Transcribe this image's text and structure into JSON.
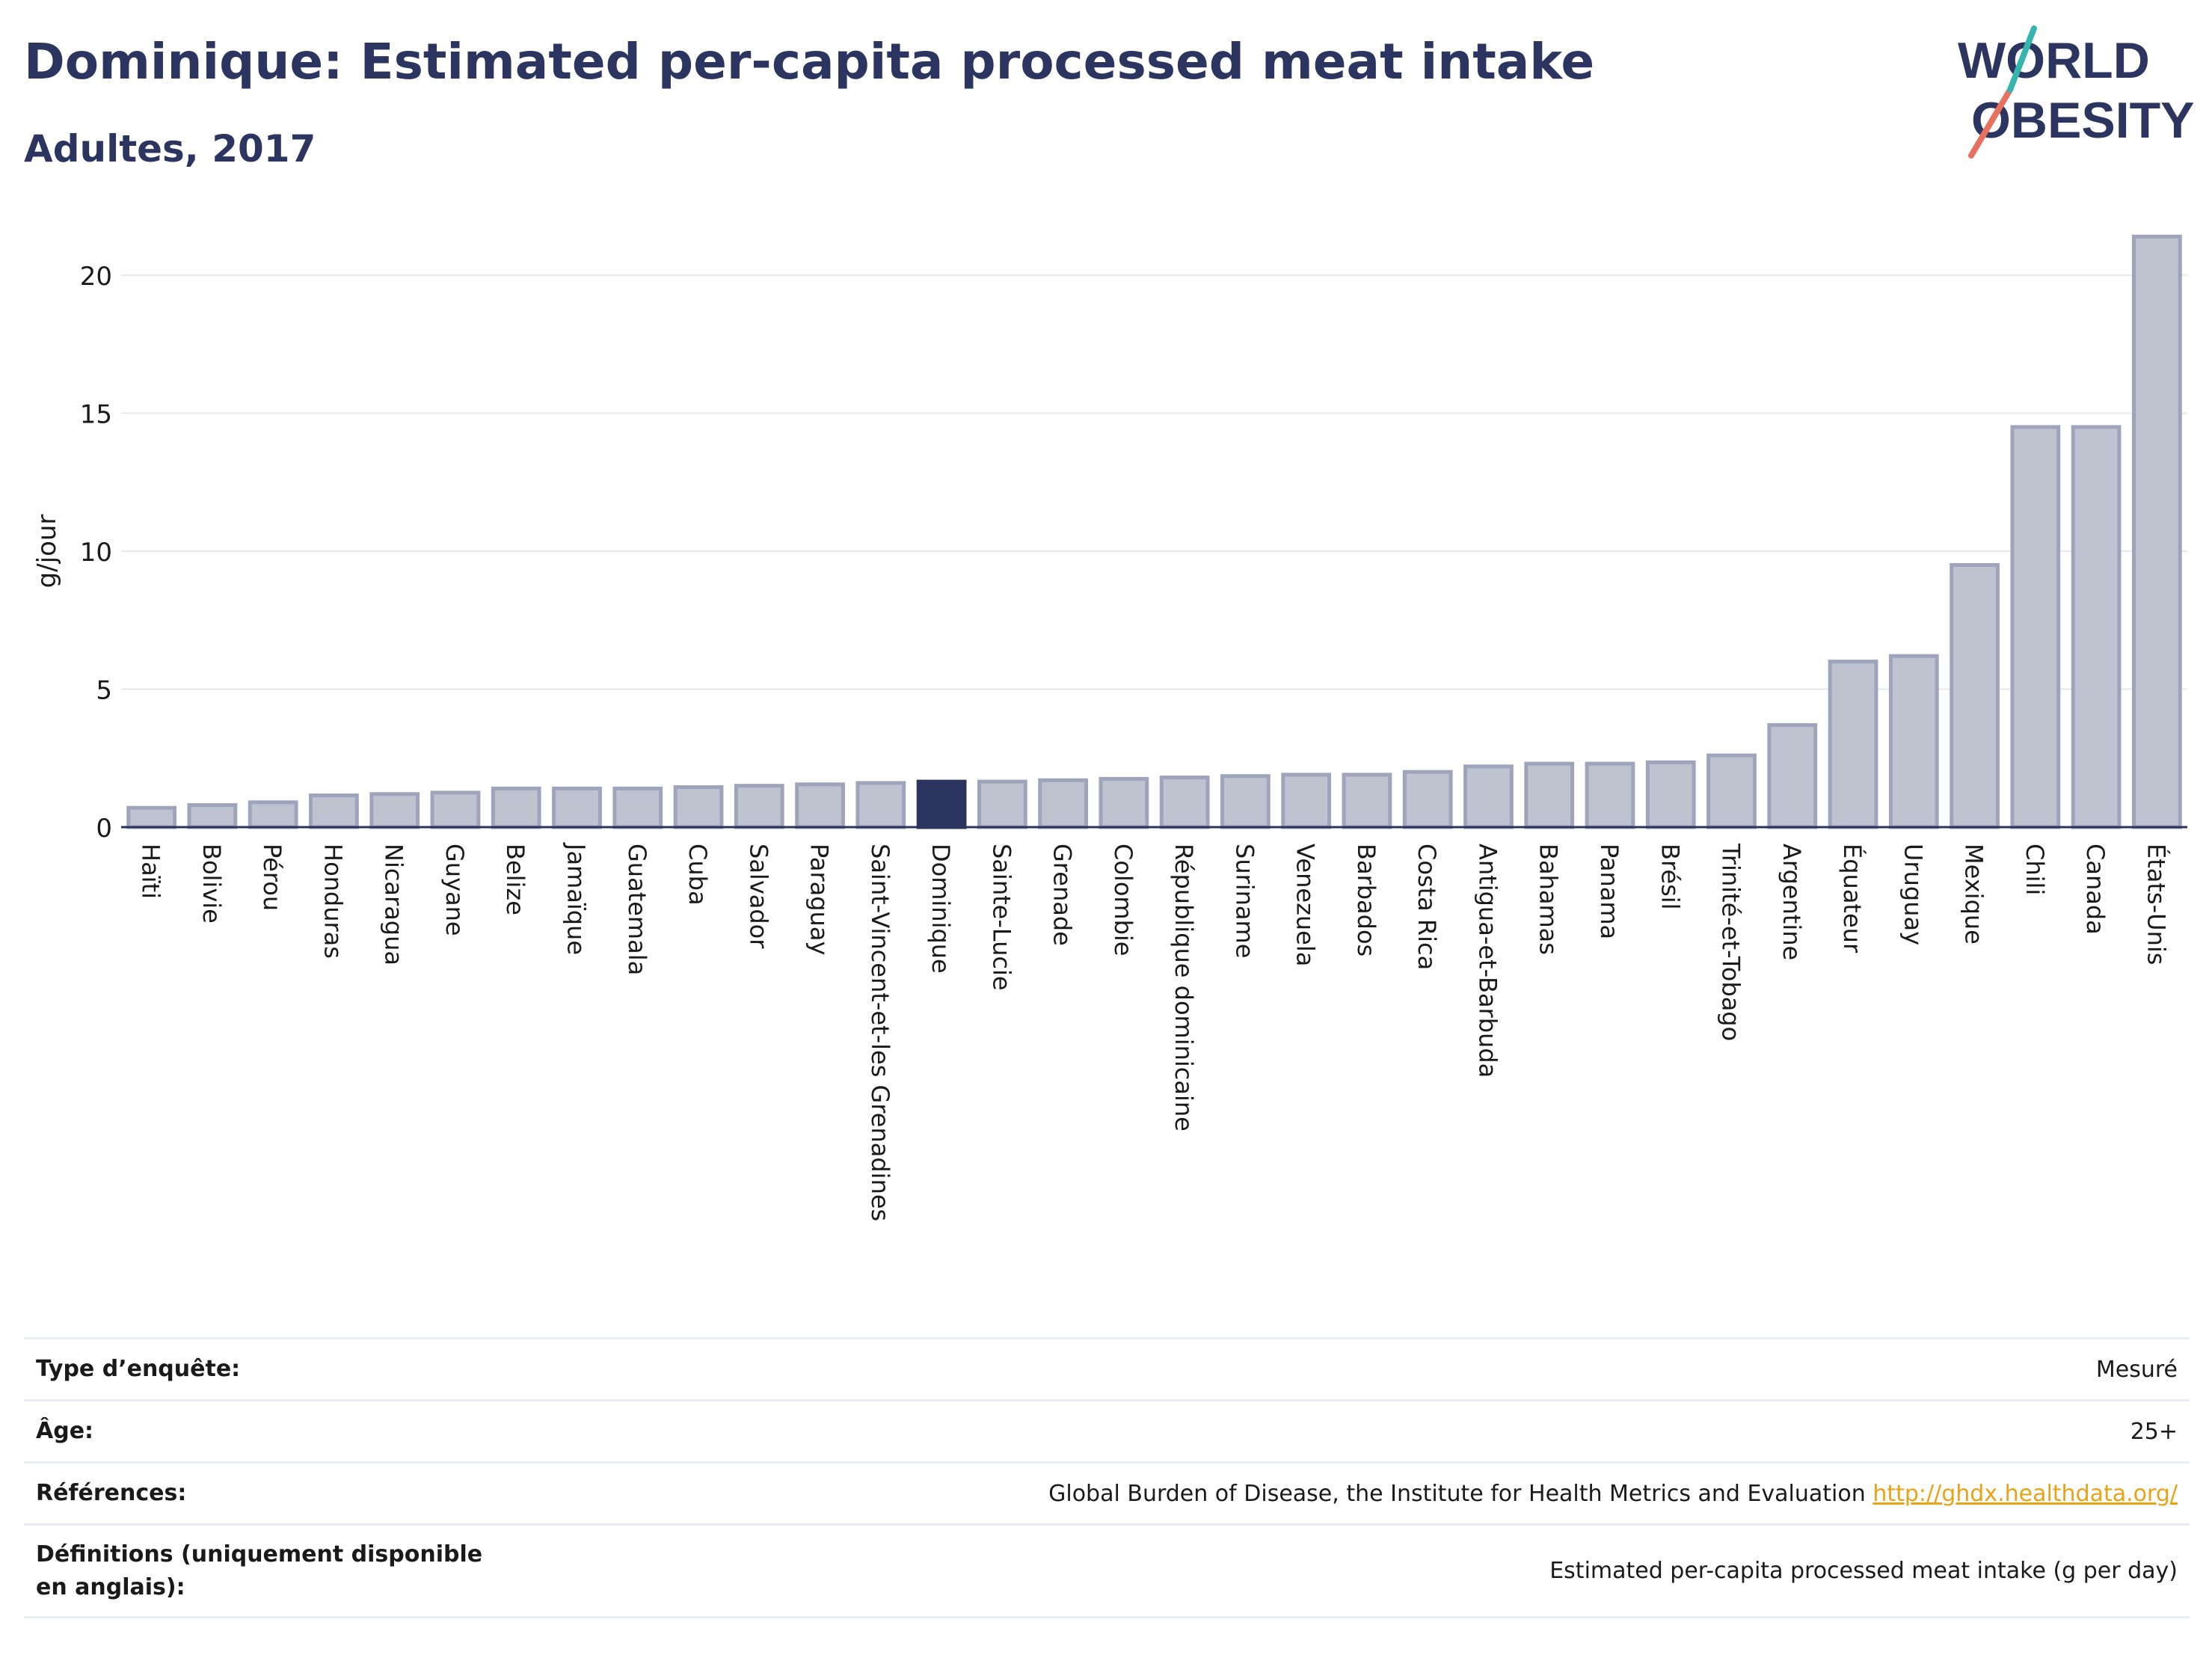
{
  "title": "Dominique: Estimated per-capita processed meat intake",
  "subtitle": "Adultes, 2017",
  "logo": {
    "line1": "WORLD",
    "line2": "OBESITY"
  },
  "colors": {
    "bar": "#bfc3d0",
    "bar_stroke": "#9ea4bb",
    "highlight": "#2b3560",
    "title": "#2b3560",
    "link": "#e8a317"
  },
  "chart_data": {
    "type": "bar",
    "ylabel": "g/jour",
    "xlabel": "",
    "ylim": [
      0,
      22
    ],
    "yticks": [
      0,
      5,
      10,
      15,
      20
    ],
    "grid": true,
    "highlight": "Dominique",
    "categories": [
      "Haïti",
      "Bolivie",
      "Pérou",
      "Honduras",
      "Nicaragua",
      "Guyane",
      "Belize",
      "Jamaïque",
      "Guatemala",
      "Cuba",
      "Salvador",
      "Paraguay",
      "Saint-Vincent-et-les Grenadines",
      "Dominique",
      "Sainte-Lucie",
      "Grenade",
      "Colombie",
      "République dominicaine",
      "Suriname",
      "Venezuela",
      "Barbados",
      "Costa Rica",
      "Antigua-et-Barbuda",
      "Bahamas",
      "Panama",
      "Brésil",
      "Trinité-et-Tobago",
      "Argentine",
      "Équateur",
      "Uruguay",
      "Mexique",
      "Chili",
      "Canada",
      "États-Unis"
    ],
    "values": [
      0.7,
      0.8,
      0.9,
      1.15,
      1.2,
      1.25,
      1.4,
      1.4,
      1.4,
      1.45,
      1.5,
      1.55,
      1.6,
      1.65,
      1.65,
      1.7,
      1.75,
      1.8,
      1.85,
      1.9,
      1.9,
      2.0,
      2.2,
      2.3,
      2.3,
      2.35,
      2.6,
      3.7,
      6.0,
      6.2,
      9.5,
      14.5,
      14.5,
      21.4
    ]
  },
  "info": [
    {
      "label": "Type d’enquête:",
      "value": "Mesuré"
    },
    {
      "label": "Âge:",
      "value": "25+"
    },
    {
      "label": "Références:",
      "value": "Global Burden of Disease, the Institute for Health Metrics and Evaluation",
      "link": "http://ghdx.healthdata.org/"
    },
    {
      "label": "Définitions (uniquement disponible en anglais):",
      "value": "Estimated per-capita processed meat intake (g per day)"
    }
  ]
}
